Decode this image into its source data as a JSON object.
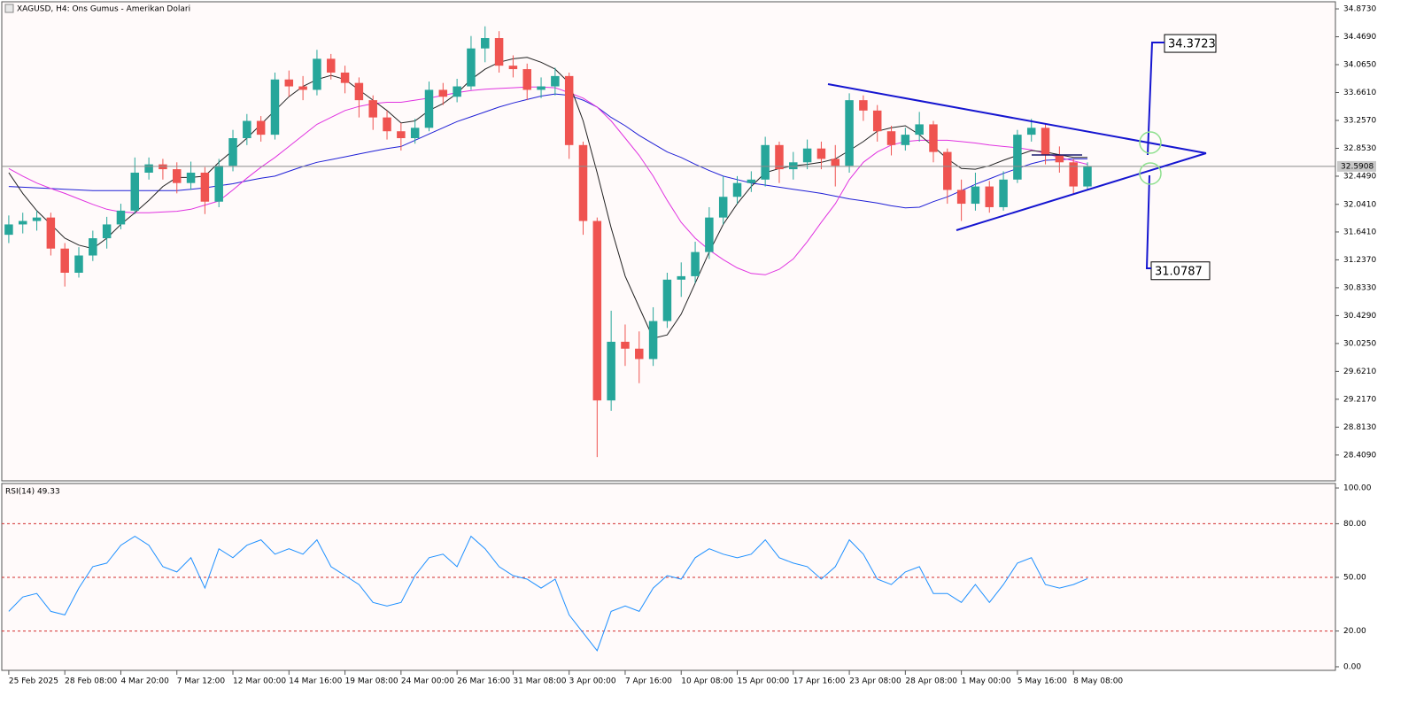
{
  "chart_data": [
    {
      "type": "candlestick",
      "title": "XAGUSD, H4:  Ons Gumus - Amerikan Dolari",
      "colors": {
        "up": "#26a69a",
        "down": "#ef5350"
      },
      "open": [
        31.6,
        31.75,
        31.8,
        31.85,
        31.4,
        31.05,
        31.3,
        31.55,
        31.75,
        31.95,
        32.5,
        32.62,
        32.55,
        32.35,
        32.5,
        32.08,
        32.6,
        33.0,
        33.25,
        33.05,
        33.85,
        33.75,
        33.7,
        34.15,
        33.95,
        33.8,
        33.55,
        33.3,
        33.1,
        33.0,
        33.15,
        33.7,
        33.6,
        33.75,
        34.3,
        34.45,
        34.05,
        34.0,
        33.7,
        33.75,
        33.9,
        32.9,
        31.8,
        29.2,
        30.05,
        29.95,
        29.8,
        30.35,
        30.95,
        31.0,
        31.35,
        31.85,
        32.15,
        32.35,
        32.4,
        32.9,
        32.55,
        32.65,
        32.85,
        32.7,
        32.6,
        33.55,
        33.4,
        33.1,
        32.9,
        33.05,
        33.2,
        32.8,
        32.25,
        32.05,
        32.3,
        32.0,
        32.4,
        33.05,
        33.15,
        32.75,
        32.65,
        32.3
      ],
      "high": [
        31.88,
        31.92,
        31.95,
        31.92,
        31.48,
        31.42,
        31.66,
        31.86,
        32.05,
        32.72,
        32.72,
        32.7,
        32.65,
        32.66,
        32.58,
        32.7,
        33.12,
        33.35,
        33.32,
        33.95,
        33.98,
        33.9,
        34.28,
        34.22,
        34.05,
        33.88,
        33.62,
        33.4,
        33.22,
        33.28,
        33.82,
        33.8,
        33.86,
        34.48,
        34.62,
        34.55,
        34.2,
        34.08,
        33.88,
        34.02,
        33.95,
        32.95,
        31.85,
        30.5,
        30.3,
        30.2,
        30.55,
        31.05,
        31.2,
        31.5,
        32.0,
        32.45,
        32.45,
        32.52,
        33.02,
        32.95,
        32.8,
        32.98,
        32.95,
        32.9,
        33.65,
        33.62,
        33.48,
        33.18,
        33.15,
        33.38,
        33.25,
        32.85,
        32.4,
        32.5,
        32.38,
        32.52,
        33.12,
        33.28,
        33.2,
        32.88,
        32.7,
        32.65
      ],
      "low": [
        31.48,
        31.62,
        31.66,
        31.3,
        30.85,
        30.98,
        31.22,
        31.4,
        31.68,
        31.9,
        32.4,
        32.4,
        32.2,
        32.25,
        31.9,
        32.0,
        32.52,
        32.9,
        32.95,
        32.98,
        33.6,
        33.55,
        33.62,
        33.85,
        33.65,
        33.3,
        33.12,
        32.98,
        32.82,
        32.92,
        33.1,
        33.48,
        33.52,
        33.7,
        34.1,
        33.95,
        33.88,
        33.55,
        33.58,
        33.62,
        32.7,
        31.6,
        28.38,
        29.05,
        29.7,
        29.45,
        29.7,
        30.25,
        30.7,
        30.9,
        31.25,
        31.75,
        32.05,
        32.22,
        32.3,
        32.35,
        32.4,
        32.55,
        32.55,
        32.3,
        32.5,
        33.25,
        32.95,
        32.75,
        32.82,
        32.95,
        32.65,
        32.05,
        31.8,
        31.95,
        31.92,
        31.95,
        32.35,
        32.95,
        32.62,
        32.5,
        32.2,
        32.25
      ],
      "close": [
        31.75,
        31.8,
        31.85,
        31.4,
        31.05,
        31.3,
        31.55,
        31.75,
        31.95,
        32.5,
        32.62,
        32.55,
        32.35,
        32.5,
        32.08,
        32.6,
        33.0,
        33.25,
        33.05,
        33.85,
        33.75,
        33.7,
        34.15,
        33.95,
        33.8,
        33.55,
        33.3,
        33.1,
        33.0,
        33.15,
        33.7,
        33.6,
        33.75,
        34.3,
        34.45,
        34.05,
        34.0,
        33.7,
        33.75,
        33.9,
        32.9,
        31.8,
        29.2,
        30.05,
        29.95,
        29.8,
        30.35,
        30.95,
        31.0,
        31.35,
        31.85,
        32.15,
        32.35,
        32.4,
        32.9,
        32.55,
        32.65,
        32.85,
        32.7,
        32.6,
        33.55,
        33.4,
        33.1,
        32.9,
        33.05,
        33.2,
        32.8,
        32.25,
        32.05,
        32.3,
        32.0,
        32.4,
        33.05,
        33.15,
        32.75,
        32.65,
        32.3,
        32.59
      ],
      "series": [
        {
          "color": "#1f1fd6",
          "values": [
            32.3,
            32.29,
            32.28,
            32.27,
            32.26,
            32.25,
            32.24,
            32.24,
            32.24,
            32.24,
            32.24,
            32.24,
            32.24,
            32.26,
            32.28,
            32.31,
            32.34,
            32.38,
            32.42,
            32.45,
            32.52,
            32.59,
            32.65,
            32.69,
            32.73,
            32.77,
            32.81,
            32.85,
            32.88,
            32.97,
            33.06,
            33.15,
            33.24,
            33.31,
            33.38,
            33.45,
            33.51,
            33.56,
            33.61,
            33.64,
            33.62,
            33.55,
            33.45,
            33.3,
            33.18,
            33.04,
            32.92,
            32.8,
            32.72,
            32.62,
            32.53,
            32.45,
            32.4,
            32.35,
            32.32,
            32.29,
            32.26,
            32.23,
            32.2,
            32.16,
            32.12,
            32.09,
            32.06,
            32.02,
            31.99,
            32.0,
            32.08,
            32.15,
            32.24,
            32.33,
            32.41,
            32.49,
            32.56,
            32.63,
            32.68,
            32.69,
            32.7,
            32.7
          ]
        },
        {
          "color": "#e033e0",
          "values": [
            32.56,
            32.45,
            32.35,
            32.27,
            32.2,
            32.12,
            32.04,
            31.97,
            31.93,
            31.92,
            31.92,
            31.93,
            31.94,
            31.97,
            32.03,
            32.09,
            32.25,
            32.42,
            32.58,
            32.72,
            32.88,
            33.04,
            33.2,
            33.3,
            33.4,
            33.46,
            33.5,
            33.52,
            33.52,
            33.55,
            33.58,
            33.62,
            33.66,
            33.69,
            33.71,
            33.72,
            33.73,
            33.74,
            33.74,
            33.73,
            33.66,
            33.58,
            33.45,
            33.25,
            33.0,
            32.75,
            32.45,
            32.1,
            31.78,
            31.55,
            31.38,
            31.24,
            31.12,
            31.04,
            31.02,
            31.1,
            31.25,
            31.5,
            31.78,
            32.05,
            32.4,
            32.65,
            32.8,
            32.9,
            32.95,
            32.97,
            32.97,
            32.97,
            32.95,
            32.93,
            32.9,
            32.88,
            32.86,
            32.83,
            32.78,
            32.72,
            32.67,
            32.62
          ]
        },
        {
          "color": "#222222",
          "values": [
            32.5,
            32.2,
            31.95,
            31.75,
            31.55,
            31.45,
            31.4,
            31.55,
            31.75,
            31.92,
            32.1,
            32.3,
            32.43,
            32.43,
            32.45,
            32.65,
            32.82,
            33.0,
            33.2,
            33.4,
            33.6,
            33.75,
            33.85,
            33.91,
            33.85,
            33.7,
            33.55,
            33.4,
            33.22,
            33.25,
            33.4,
            33.5,
            33.65,
            33.85,
            34.0,
            34.1,
            34.15,
            34.17,
            34.1,
            34.0,
            33.8,
            33.25,
            32.5,
            31.7,
            31.0,
            30.55,
            30.1,
            30.15,
            30.45,
            30.9,
            31.35,
            31.75,
            32.05,
            32.3,
            32.5,
            32.56,
            32.6,
            32.62,
            32.65,
            32.7,
            32.82,
            32.95,
            33.1,
            33.15,
            33.18,
            33.05,
            32.88,
            32.7,
            32.56,
            32.55,
            32.6,
            32.68,
            32.75,
            32.82,
            32.8,
            32.76,
            32.72,
            32.72
          ]
        }
      ],
      "xlim": [
        -0.5,
        94.7
      ],
      "xticks": [
        {
          "value": 0,
          "label": "25 Feb 2025"
        },
        {
          "value": 4,
          "label": "28 Feb 08:00"
        },
        {
          "value": 8,
          "label": "4 Mar 20:00"
        },
        {
          "value": 12,
          "label": "7 Mar 12:00"
        },
        {
          "value": 16,
          "label": "12 Mar 00:00"
        },
        {
          "value": 20,
          "label": "14 Mar 16:00"
        },
        {
          "value": 24,
          "label": "19 Mar 08:00"
        },
        {
          "value": 28,
          "label": "24 Mar 00:00"
        },
        {
          "value": 32,
          "label": "26 Mar 16:00"
        },
        {
          "value": 36,
          "label": "31 Mar 08:00"
        },
        {
          "value": 40,
          "label": "3 Apr 00:00"
        },
        {
          "value": 44,
          "label": "7 Apr 16:00"
        },
        {
          "value": 48,
          "label": "10 Apr 08:00"
        },
        {
          "value": 52,
          "label": "15 Apr 00:00"
        },
        {
          "value": 56,
          "label": "17 Apr 16:00"
        },
        {
          "value": 60,
          "label": "23 Apr 08:00"
        },
        {
          "value": 64,
          "label": "28 Apr 08:00"
        },
        {
          "value": 68,
          "label": "1 May 00:00"
        },
        {
          "value": 72,
          "label": "5 May 16:00"
        },
        {
          "value": 76,
          "label": "8 May 08:00"
        }
      ],
      "ylim": [
        28.035,
        34.976
      ],
      "yticks": [
        {
          "value": 34.873,
          "label": "34.8730"
        },
        {
          "value": 34.469,
          "label": "34.4690"
        },
        {
          "value": 34.065,
          "label": "34.0650"
        },
        {
          "value": 33.661,
          "label": "33.6610"
        },
        {
          "value": 33.257,
          "label": "33.2570"
        },
        {
          "value": 32.853,
          "label": "32.8530"
        },
        {
          "value": 32.449,
          "label": "32.4490"
        },
        {
          "value": 32.041,
          "label": "32.0410"
        },
        {
          "value": 31.641,
          "label": "31.6410"
        },
        {
          "value": 31.237,
          "label": "31.2370"
        },
        {
          "value": 30.833,
          "label": "30.8330"
        },
        {
          "value": 30.429,
          "label": "30.4290"
        },
        {
          "value": 30.025,
          "label": "30.0250"
        },
        {
          "value": 29.621,
          "label": "29.6210"
        },
        {
          "value": 29.217,
          "label": "29.2170"
        },
        {
          "value": 28.813,
          "label": "28.8130"
        },
        {
          "value": 28.409,
          "label": "28.4090"
        }
      ],
      "last_price": 32.5908,
      "targets": [
        34.3723,
        31.0787
      ]
    },
    {
      "type": "line",
      "title": "RSI(14) 49.33",
      "color": "#1e90ff",
      "values": [
        31,
        39,
        41,
        31,
        29,
        44,
        56,
        58,
        68,
        73,
        68,
        56,
        53,
        61,
        44,
        66,
        61,
        68,
        71,
        63,
        66,
        63,
        71,
        56,
        51,
        46,
        36,
        34,
        36,
        51,
        61,
        63,
        56,
        73,
        66,
        56,
        51,
        49,
        44,
        49,
        29,
        19,
        9,
        31,
        34,
        31,
        44,
        51,
        49,
        61,
        66,
        63,
        61,
        63,
        71,
        61,
        58,
        56,
        49,
        56,
        71,
        63,
        49,
        46,
        53,
        56,
        41,
        41,
        36,
        46,
        36,
        46,
        58,
        61,
        46,
        44,
        46,
        49.33
      ],
      "ylim": [
        -2,
        102.5
      ],
      "yticks": [
        {
          "value": 100,
          "label": "100.00"
        },
        {
          "value": 80,
          "label": "80.00"
        },
        {
          "value": 50,
          "label": "50.00"
        },
        {
          "value": 20,
          "label": "20.00"
        },
        {
          "value": 0,
          "label": "0.00"
        }
      ],
      "levels": [
        80,
        50,
        20
      ],
      "level_color": "#d32f2f"
    }
  ]
}
